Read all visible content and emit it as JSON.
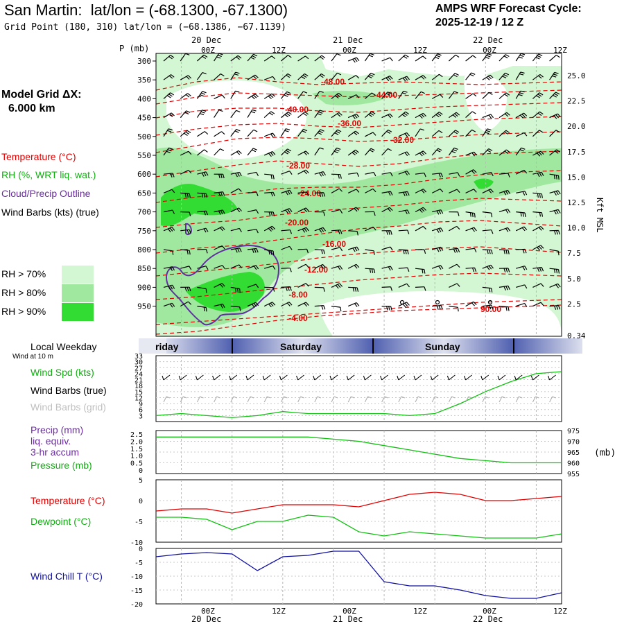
{
  "header": {
    "station": "San Martin:",
    "latlon": "lat/lon = (-68.1300, -67.1300)",
    "grid_point": "Grid Point (180, 310) lat/lon = (−68.1386, −67.1139)",
    "cycle_title": "AMPS WRF Forecast Cycle:",
    "cycle_value": "2025-12-19 / 12  Z"
  },
  "left_labels": {
    "model_grid": "Model Grid ΔX:",
    "grid_dx": "6.000 km",
    "temperature": "Temperature (°C)",
    "rh": "RH (%, WRT liq. wat.)",
    "cloud": "Cloud/Precip Outline",
    "barbs": "Wind Barbs (kts) (true)",
    "rh70": "RH > 70%",
    "rh80": "RH > 80%",
    "rh90": "RH > 90%",
    "local_weekday": "Local Weekday",
    "wind_at": "Wind at 10 m",
    "wind_spd": "Wind Spd (kts)",
    "wind_barbs_true": "Wind Barbs (true)",
    "wind_barbs_grid": "Wind Barbs (grid)",
    "precip": "Precip (mm)",
    "liq": "liq. equiv.",
    "accum": "3-hr accum",
    "pressure": "Pressure (mb)",
    "temp2": "Temperature (°C)",
    "dew": "Dewpoint (°C)",
    "windchill": "Wind Chill T (°C)"
  },
  "colors": {
    "rh70": "#d2f7d2",
    "rh80": "#a0e8a0",
    "rh90": "#32dc32",
    "temp": "#e00000",
    "green": "#10c010",
    "purple": "#6030a0",
    "blue": "#1010a0",
    "band": "#5060b0"
  },
  "time_axis": {
    "top_dates": [
      "20 Dec",
      "21 Dec",
      "22 Dec"
    ],
    "ticks": [
      "00Z",
      "12Z",
      "00Z",
      "12Z",
      "00Z",
      "12Z"
    ],
    "weekday_labels": [
      "riday",
      "Saturday",
      "Sunday"
    ],
    "bottom_dates": [
      "20 Dec",
      "21 Dec",
      "22 Dec"
    ]
  },
  "main_panel": {
    "p_label": "P (mb)",
    "kft_label": "Kft MSL",
    "pressure_levels": [
      "300",
      "350",
      "400",
      "450",
      "500",
      "550",
      "600",
      "650",
      "700",
      "750",
      "800",
      "850",
      "900",
      "950"
    ],
    "kft_levels": [
      "25.0",
      "22.5",
      "20.0",
      "17.5",
      "15.0",
      "12.5",
      "10.0",
      "7.5",
      "5.0",
      "2.5",
      "0.34"
    ],
    "isotherms": [
      {
        "label": "-48.00",
        "value": -48
      },
      {
        "label": "-44.00",
        "value": -44
      },
      {
        "label": "-40.00",
        "value": -40
      },
      {
        "label": "-36.00",
        "value": -36
      },
      {
        "label": "-32.00",
        "value": -32
      },
      {
        "label": "-28.00",
        "value": -28
      },
      {
        "label": "-24.00",
        "value": -24
      },
      {
        "label": "-20.00",
        "value": -20
      },
      {
        "label": "-16.00",
        "value": -16
      },
      {
        "label": "-12.00",
        "value": -12
      },
      {
        "label": "-8.00",
        "value": -8
      },
      {
        "label": "-4.00",
        "value": -4
      },
      {
        "label": "90.00",
        "value": 90
      }
    ]
  },
  "chart_data": [
    {
      "type": "line",
      "title": "Wind Spd (kts)",
      "x_hours": [
        0,
        6,
        12,
        18,
        24,
        30,
        36,
        42,
        48,
        54,
        60,
        66,
        72,
        78,
        84,
        90,
        96
      ],
      "series": [
        {
          "name": "Wind Spd (kts)",
          "values": [
            3,
            4,
            3,
            2,
            3,
            5,
            4,
            4,
            4,
            4,
            3,
            4,
            9,
            15,
            20,
            24,
            25
          ]
        }
      ],
      "ylim": [
        0,
        33
      ],
      "yticks": [
        "33",
        "30",
        "27",
        "24",
        "21",
        "18",
        "15",
        "12",
        "9",
        "6",
        "3"
      ]
    },
    {
      "type": "line",
      "title": "Pressure (mb)",
      "series": [
        {
          "name": "Pressure (mb)",
          "values": [
            972,
            972,
            972,
            972,
            972,
            972,
            972,
            971,
            970,
            968,
            966,
            964,
            962,
            961,
            960,
            960,
            960
          ]
        }
      ],
      "ylim": [
        955,
        975
      ],
      "left_ticks": [
        "2.5",
        "2.0",
        "1.5",
        "1.0",
        "0.5",
        "0"
      ],
      "right_ticks": [
        "975",
        "970",
        "965",
        "960",
        "955"
      ],
      "right_unit": "(mb)"
    },
    {
      "type": "line",
      "title": "Temperature / Dewpoint (°C)",
      "series": [
        {
          "name": "Temperature (°C)",
          "values": [
            -2.5,
            -2,
            -2,
            -3,
            -2,
            -1,
            -1,
            -1,
            -1.5,
            0,
            1.5,
            2,
            1.5,
            0,
            0,
            0.5,
            1
          ]
        },
        {
          "name": "Dewpoint (°C)",
          "values": [
            -4,
            -4,
            -4.5,
            -7,
            -5,
            -5,
            -3.5,
            -4,
            -7.5,
            -8.5,
            -7.5,
            -8,
            -8.5,
            -9,
            -9,
            -9,
            -8
          ]
        }
      ],
      "ylim": [
        -10,
        5
      ],
      "yticks": [
        "5",
        "0",
        "-5",
        "-10"
      ]
    },
    {
      "type": "line",
      "title": "Wind Chill T (°C)",
      "series": [
        {
          "name": "Wind Chill T (°C)",
          "values": [
            -3,
            -2,
            -1.5,
            -2,
            -8,
            -3,
            -2.5,
            -1,
            -1,
            -12,
            -13.5,
            -13.5,
            -15,
            -17,
            -18,
            -18,
            -16
          ]
        }
      ],
      "ylim": [
        -20,
        0
      ],
      "yticks": [
        "0",
        "-5",
        "-10",
        "-15",
        "-20"
      ]
    }
  ]
}
